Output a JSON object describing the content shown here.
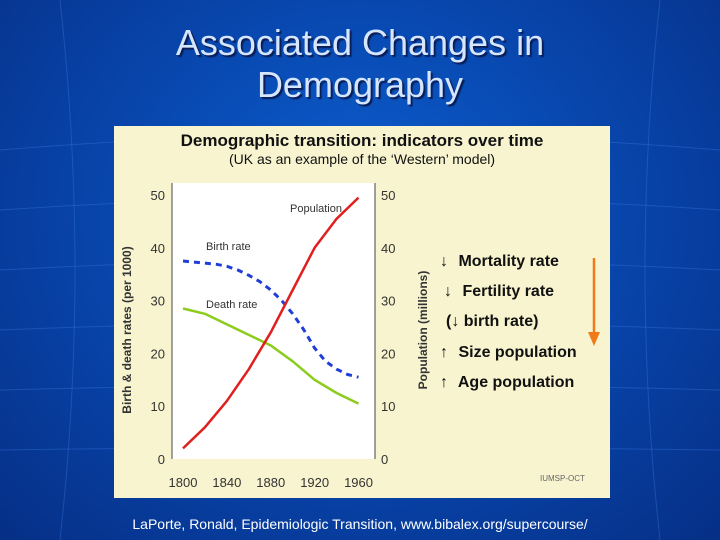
{
  "slide": {
    "title_line1": "Associated Changes in",
    "title_line2": "Demography",
    "credit": "LaPorte, Ronald, Epidemiologic Transition, www.bibalex.org/supercourse/"
  },
  "indicators": [
    {
      "arrow": "↓",
      "label": "Mortality rate"
    },
    {
      "arrow": "↓",
      "label": "Fertility rate"
    },
    {
      "arrow": "(↓",
      "label": "birth rate)"
    },
    {
      "arrow": "↑",
      "label": "Size population"
    },
    {
      "arrow": "↑",
      "label": "Age population"
    }
  ],
  "colors": {
    "background": "#0848b0",
    "figure_bg": "#f7f4cf",
    "population": "#e0201e",
    "birth_rate": "#1f3ed6",
    "death_rate": "#8ccc1c",
    "indicator_arrow": "#f07a1a"
  },
  "chart_data": {
    "type": "line",
    "title": "Demographic transition: indicators over time",
    "subtitle": "(UK as an example of the ‘Western’ model)",
    "xlabel": "",
    "ylabel_left": "Birth & death rates (per 1000)",
    "ylabel_right": "Population (millions)",
    "xlim": [
      1790,
      1975
    ],
    "ylim_left": [
      0,
      50
    ],
    "ylim_right": [
      0,
      50
    ],
    "x_ticks": [
      1800,
      1840,
      1880,
      1920,
      1960
    ],
    "y_ticks_left": [
      0,
      10,
      20,
      30,
      40,
      50
    ],
    "y_ticks_right": [
      0,
      10,
      20,
      30,
      40,
      50
    ],
    "watermark": "IUMSP-OCT",
    "series": [
      {
        "name": "Birth rate",
        "axis": "left",
        "style": "dashed",
        "x": [
          1800,
          1810,
          1820,
          1830,
          1840,
          1850,
          1860,
          1870,
          1880,
          1890,
          1900,
          1910,
          1920,
          1930,
          1940,
          1950,
          1960
        ],
        "y": [
          37.5,
          37.3,
          37.1,
          36.9,
          36.5,
          35.8,
          34.8,
          33.6,
          32,
          30,
          27.5,
          24.5,
          21,
          18.5,
          17,
          16,
          15.5
        ]
      },
      {
        "name": "Death rate",
        "axis": "left",
        "style": "solid",
        "x": [
          1800,
          1820,
          1840,
          1860,
          1880,
          1900,
          1920,
          1940,
          1960
        ],
        "y": [
          28.5,
          27.5,
          25.5,
          23.5,
          21.5,
          18.5,
          15,
          12.5,
          10.5
        ]
      },
      {
        "name": "Population",
        "axis": "right",
        "style": "solid",
        "x": [
          1800,
          1820,
          1840,
          1860,
          1880,
          1900,
          1920,
          1940,
          1960
        ],
        "y": [
          2,
          6,
          11,
          17,
          24,
          32,
          40,
          45.5,
          49.5
        ]
      }
    ]
  }
}
